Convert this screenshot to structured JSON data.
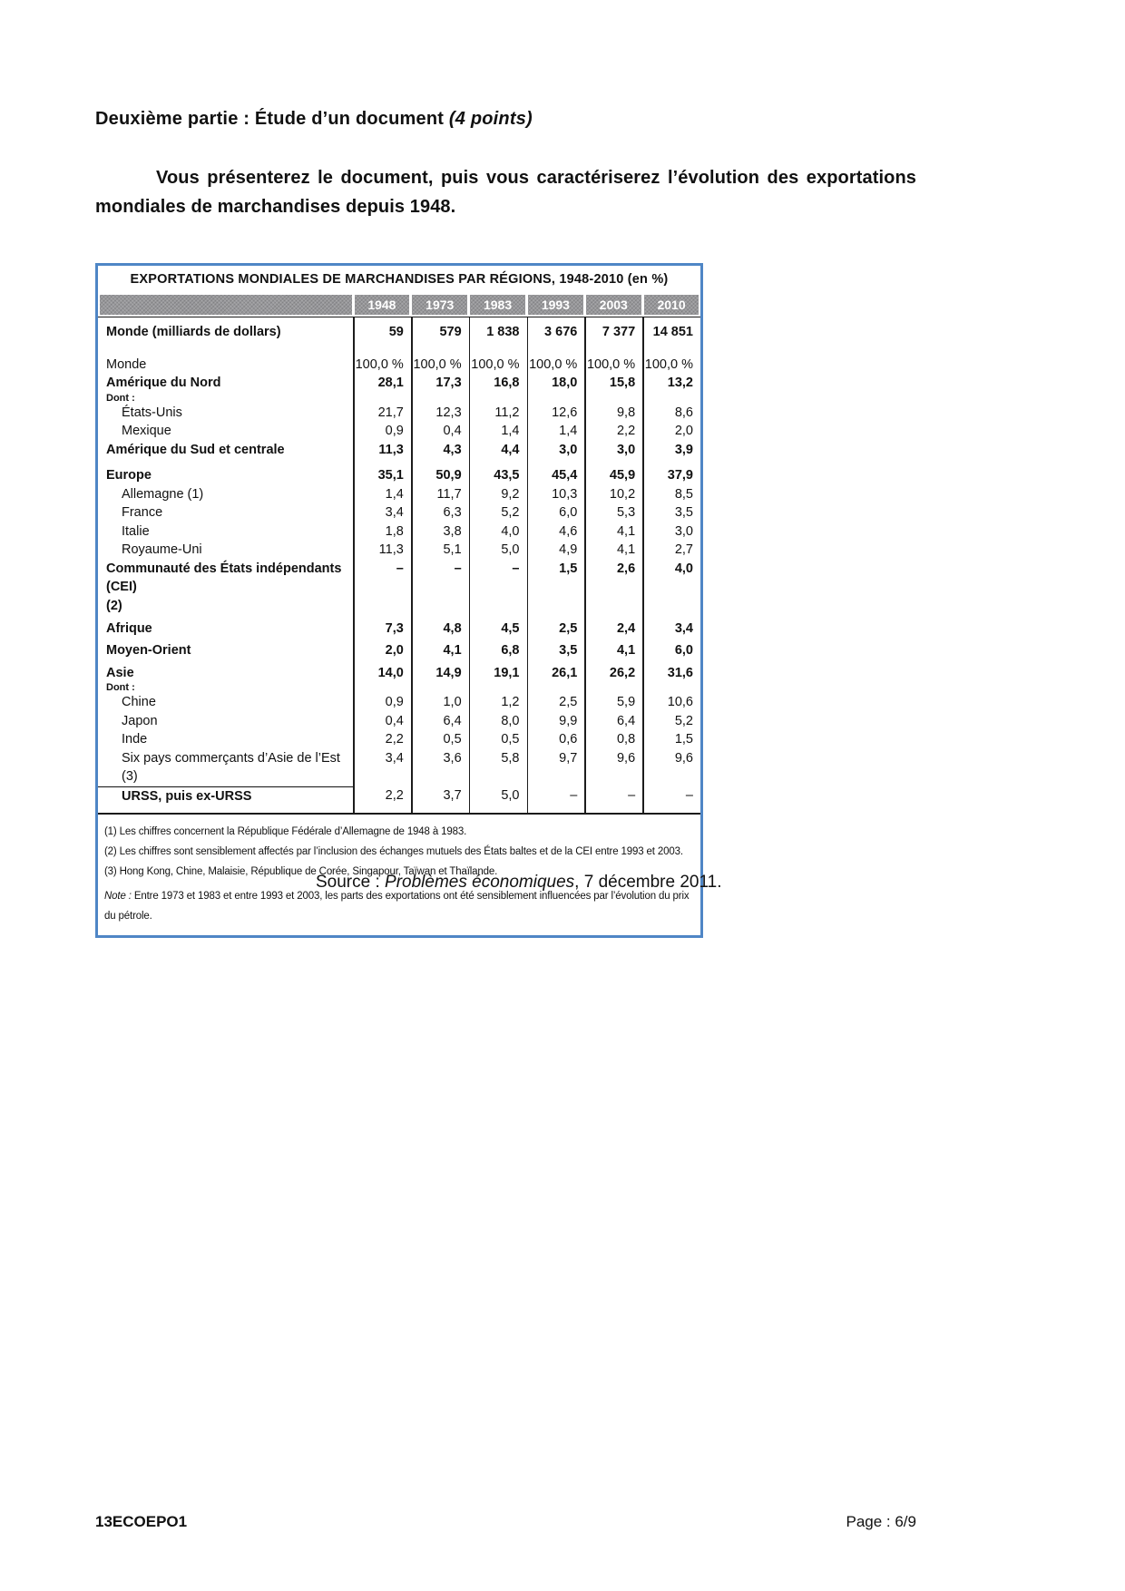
{
  "page": {
    "heading": {
      "main": "Deuxième partie : Étude d’un document",
      "points": "(4 points)"
    },
    "instruction": "Vous présenterez le document, puis vous caractériserez l’évolution des exportations mondiales de marchandises depuis 1948.",
    "source": {
      "prefix": "Source : ",
      "publication": "Problèmes économiques",
      "suffix": ", 7 décembre 2011."
    },
    "footer": {
      "left": "13ECOEPO1",
      "right": "Page : 6/9"
    }
  },
  "table": {
    "title": "EXPORTATIONS MONDIALES DE MARCHANDISES PAR RÉGIONS, 1948-2010 (en %)",
    "columns": [
      "1948",
      "1973",
      "1983",
      "1993",
      "2003",
      "2010"
    ],
    "rows": [
      {
        "label": "Monde (milliards de dollars)",
        "bold_label": true,
        "bold_values": true,
        "values": [
          "59",
          "579",
          "1 838",
          "3 676",
          "7 377",
          "14 851"
        ]
      },
      {
        "label": "Monde",
        "gap": "lg",
        "values": [
          "100,0 %",
          "100,0 %",
          "100,0 %",
          "100,0 %",
          "100,0 %",
          "100,0 %"
        ]
      },
      {
        "label": "Amérique du Nord",
        "bold_label": true,
        "bold_values": true,
        "sublabel": "Dont :",
        "values": [
          "28,1",
          "17,3",
          "16,8",
          "18,0",
          "15,8",
          "13,2"
        ]
      },
      {
        "label": "États-Unis",
        "indent": true,
        "values": [
          "21,7",
          "12,3",
          "11,2",
          "12,6",
          "9,8",
          "8,6"
        ]
      },
      {
        "label": "Mexique",
        "indent": true,
        "values": [
          "0,9",
          "0,4",
          "1,4",
          "1,4",
          "2,2",
          "2,0"
        ]
      },
      {
        "label": "Amérique du Sud et centrale",
        "bold_label": true,
        "bold_values": true,
        "values": [
          "11,3",
          "4,3",
          "4,4",
          "3,0",
          "3,0",
          "3,9"
        ]
      },
      {
        "label": "Europe",
        "gap": "md",
        "bold_label": true,
        "bold_values": true,
        "values": [
          "35,1",
          "50,9",
          "43,5",
          "45,4",
          "45,9",
          "37,9"
        ]
      },
      {
        "label": "Allemagne (1)",
        "indent": true,
        "values": [
          "1,4",
          "11,7",
          "9,2",
          "10,3",
          "10,2",
          "8,5"
        ]
      },
      {
        "label": "France",
        "indent": true,
        "values": [
          "3,4",
          "6,3",
          "5,2",
          "6,0",
          "5,3",
          "3,5"
        ]
      },
      {
        "label": "Italie",
        "indent": true,
        "values": [
          "1,8",
          "3,8",
          "4,0",
          "4,6",
          "4,1",
          "3,0"
        ]
      },
      {
        "label": "Royaume-Uni",
        "indent": true,
        "values": [
          "11,3",
          "5,1",
          "5,0",
          "4,9",
          "4,1",
          "2,7"
        ]
      },
      {
        "label": "Communauté des États indépendants (CEI)",
        "label_line2": "(2)",
        "bold_label": true,
        "bold_values": true,
        "values": [
          "–",
          "–",
          "–",
          "1,5",
          "2,6",
          "4,0"
        ]
      },
      {
        "label": "Afrique",
        "gap": "sm",
        "bold_label": true,
        "bold_values": true,
        "values": [
          "7,3",
          "4,8",
          "4,5",
          "2,5",
          "2,4",
          "3,4"
        ]
      },
      {
        "label": "Moyen-Orient",
        "gap": "sm",
        "bold_label": true,
        "bold_values": true,
        "values": [
          "2,0",
          "4,1",
          "6,8",
          "3,5",
          "4,1",
          "6,0"
        ]
      },
      {
        "label": "Asie",
        "gap": "sm",
        "bold_label": true,
        "bold_values": true,
        "sublabel": "Dont :",
        "values": [
          "14,0",
          "14,9",
          "19,1",
          "26,1",
          "26,2",
          "31,6"
        ]
      },
      {
        "label": "Chine",
        "indent": true,
        "values": [
          "0,9",
          "1,0",
          "1,2",
          "2,5",
          "5,9",
          "10,6"
        ]
      },
      {
        "label": "Japon",
        "indent": true,
        "values": [
          "0,4",
          "6,4",
          "8,0",
          "9,9",
          "6,4",
          "5,2"
        ]
      },
      {
        "label": "Inde",
        "indent": true,
        "values": [
          "2,2",
          "0,5",
          "0,5",
          "0,6",
          "0,8",
          "1,5"
        ]
      },
      {
        "label": "Six pays commerçants d’Asie de l’Est (3)",
        "indent": true,
        "values": [
          "3,4",
          "3,6",
          "5,8",
          "9,7",
          "9,6",
          "9,6"
        ]
      },
      {
        "label": "URSS, puis ex-URSS",
        "indent": true,
        "bold_label": true,
        "top_rule": true,
        "values": [
          "2,2",
          "3,7",
          "5,0",
          "–",
          "–",
          "–"
        ]
      }
    ],
    "footnotes": [
      "(1) Les chiffres concernent la République Fédérale d’Allemagne de 1948 à 1983.",
      "(2) Les chiffres sont sensiblement affectés par l’inclusion des échanges mutuels des États baltes et de la CEI entre 1993 et 2003.",
      "(3) Hong Kong, Chine, Malaisie, République de Corée, Singapour, Taïwan et Thaïlande."
    ],
    "note": {
      "label": "Note :",
      "text": " Entre 1973 et 1983 et entre 1993 et 2003, les parts des exportations ont été sensiblement influencées par l’évolution du prix du pétrole."
    },
    "colors": {
      "border_blue": "#4f86c6",
      "header_gray": "#97979a"
    }
  }
}
